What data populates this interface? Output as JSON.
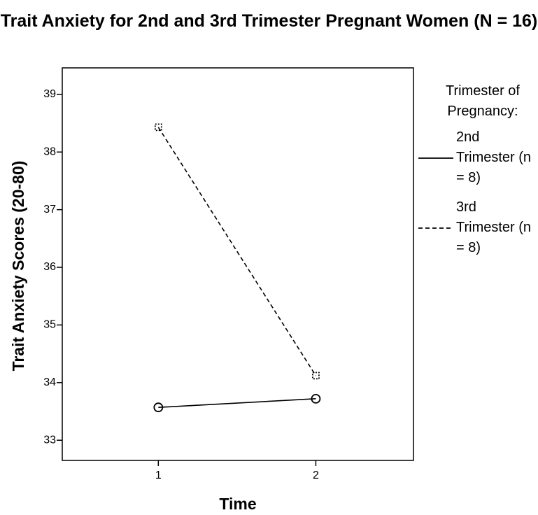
{
  "chart_data": {
    "type": "line",
    "title": "Trait Anxiety for 2nd and 3rd Trimester Pregnant Women (N = 16)",
    "x_label": "Time",
    "y_label": "Trait Anxiety Scores (20-80)",
    "x": [
      1,
      2
    ],
    "xlim": [
      0.39,
      2.62
    ],
    "xticks": [
      1,
      2
    ],
    "ylim": [
      32.65,
      39.46
    ],
    "yticks": [
      33,
      34,
      35,
      36,
      37,
      38,
      39
    ],
    "legend_title": "Trimester of Pregnancy:",
    "legend_position": "right",
    "series": [
      {
        "name": "2nd Trimester (n = 8)",
        "color": "#000000",
        "linestyle": "solid",
        "marker": "circle",
        "values": [
          33.57,
          33.72
        ]
      },
      {
        "name": "3rd Trimester (n = 8)",
        "color": "#000000",
        "linestyle": "dashed",
        "marker": "square",
        "values": [
          38.43,
          34.12
        ]
      }
    ]
  }
}
